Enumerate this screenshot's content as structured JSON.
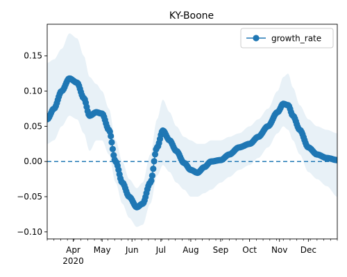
{
  "chart_data": {
    "type": "line",
    "title": "KY-Boone",
    "xlabel": "",
    "ylabel": "",
    "xlim": [
      "2020-03-05",
      "2020-12-31"
    ],
    "ylim": [
      -0.11,
      0.195
    ],
    "y_ticks": [
      -0.1,
      -0.05,
      0.0,
      0.05,
      0.1,
      0.15
    ],
    "y_tick_labels": [
      "−0.10",
      "−0.05",
      "0.00",
      "0.05",
      "0.10",
      "0.15"
    ],
    "x_ticks": [
      {
        "date": "2020-04-01",
        "label": "Apr"
      },
      {
        "date": "2020-05-01",
        "label": "May"
      },
      {
        "date": "2020-06-01",
        "label": "Jun"
      },
      {
        "date": "2020-07-01",
        "label": "Jul"
      },
      {
        "date": "2020-08-01",
        "label": "Aug"
      },
      {
        "date": "2020-09-01",
        "label": "Sep"
      },
      {
        "date": "2020-10-01",
        "label": "Oct"
      },
      {
        "date": "2020-11-01",
        "label": "Nov"
      },
      {
        "date": "2020-12-01",
        "label": "Dec"
      }
    ],
    "x_year_label": "2020",
    "legend": {
      "position": "top-right",
      "entries": [
        "growth_rate"
      ]
    },
    "reference_line": {
      "y": 0.0,
      "style": "dashed"
    },
    "series": [
      {
        "name": "growth_rate",
        "marker": "circle",
        "color": "#1f77b4",
        "band_color": "#1f77b4",
        "points": [
          {
            "x": "2020-03-05",
            "y": 0.06,
            "lo": 0.025,
            "hi": 0.14
          },
          {
            "x": "2020-03-12",
            "y": 0.075,
            "lo": 0.03,
            "hi": 0.145
          },
          {
            "x": "2020-03-20",
            "y": 0.1,
            "lo": 0.05,
            "hi": 0.16
          },
          {
            "x": "2020-03-28",
            "y": 0.118,
            "lo": 0.065,
            "hi": 0.182
          },
          {
            "x": "2020-04-05",
            "y": 0.112,
            "lo": 0.06,
            "hi": 0.175
          },
          {
            "x": "2020-04-12",
            "y": 0.09,
            "lo": 0.04,
            "hi": 0.15
          },
          {
            "x": "2020-04-18",
            "y": 0.065,
            "lo": 0.015,
            "hi": 0.12
          },
          {
            "x": "2020-04-25",
            "y": 0.07,
            "lo": 0.03,
            "hi": 0.11
          },
          {
            "x": "2020-05-01",
            "y": 0.068,
            "lo": 0.03,
            "hi": 0.1
          },
          {
            "x": "2020-05-08",
            "y": 0.045,
            "lo": 0.01,
            "hi": 0.075
          },
          {
            "x": "2020-05-15",
            "y": 0.0,
            "lo": -0.03,
            "hi": 0.03
          },
          {
            "x": "2020-05-22",
            "y": -0.03,
            "lo": -0.06,
            "hi": 0.0
          },
          {
            "x": "2020-05-29",
            "y": -0.05,
            "lo": -0.08,
            "hi": -0.025
          },
          {
            "x": "2020-06-06",
            "y": -0.065,
            "lo": -0.093,
            "hi": -0.038
          },
          {
            "x": "2020-06-12",
            "y": -0.06,
            "lo": -0.09,
            "hi": -0.03
          },
          {
            "x": "2020-06-20",
            "y": -0.03,
            "lo": -0.06,
            "hi": 0.01
          },
          {
            "x": "2020-06-27",
            "y": 0.02,
            "lo": -0.02,
            "hi": 0.06
          },
          {
            "x": "2020-07-03",
            "y": 0.044,
            "lo": -0.005,
            "hi": 0.088
          },
          {
            "x": "2020-07-10",
            "y": 0.03,
            "lo": -0.015,
            "hi": 0.07
          },
          {
            "x": "2020-07-17",
            "y": 0.015,
            "lo": -0.03,
            "hi": 0.05
          },
          {
            "x": "2020-07-25",
            "y": -0.002,
            "lo": -0.04,
            "hi": 0.035
          },
          {
            "x": "2020-08-01",
            "y": -0.012,
            "lo": -0.05,
            "hi": 0.03
          },
          {
            "x": "2020-08-08",
            "y": -0.016,
            "lo": -0.05,
            "hi": 0.025
          },
          {
            "x": "2020-08-15",
            "y": -0.008,
            "lo": -0.045,
            "hi": 0.025
          },
          {
            "x": "2020-08-22",
            "y": 0.0,
            "lo": -0.04,
            "hi": 0.03
          },
          {
            "x": "2020-09-01",
            "y": 0.002,
            "lo": -0.03,
            "hi": 0.03
          },
          {
            "x": "2020-09-10",
            "y": 0.01,
            "lo": -0.022,
            "hi": 0.035
          },
          {
            "x": "2020-09-20",
            "y": 0.02,
            "lo": -0.012,
            "hi": 0.04
          },
          {
            "x": "2020-10-01",
            "y": 0.025,
            "lo": -0.005,
            "hi": 0.05
          },
          {
            "x": "2020-10-10",
            "y": 0.035,
            "lo": 0.005,
            "hi": 0.06
          },
          {
            "x": "2020-10-20",
            "y": 0.05,
            "lo": 0.02,
            "hi": 0.075
          },
          {
            "x": "2020-10-30",
            "y": 0.07,
            "lo": 0.04,
            "hi": 0.1
          },
          {
            "x": "2020-11-05",
            "y": 0.082,
            "lo": 0.05,
            "hi": 0.12
          },
          {
            "x": "2020-11-10",
            "y": 0.08,
            "lo": 0.045,
            "hi": 0.125
          },
          {
            "x": "2020-11-15",
            "y": 0.065,
            "lo": 0.03,
            "hi": 0.105
          },
          {
            "x": "2020-11-22",
            "y": 0.045,
            "lo": 0.01,
            "hi": 0.08
          },
          {
            "x": "2020-12-01",
            "y": 0.02,
            "lo": -0.015,
            "hi": 0.06
          },
          {
            "x": "2020-12-10",
            "y": 0.01,
            "lo": -0.025,
            "hi": 0.05
          },
          {
            "x": "2020-12-20",
            "y": 0.005,
            "lo": -0.035,
            "hi": 0.045
          },
          {
            "x": "2020-12-31",
            "y": 0.002,
            "lo": -0.05,
            "hi": 0.04
          }
        ]
      }
    ]
  }
}
